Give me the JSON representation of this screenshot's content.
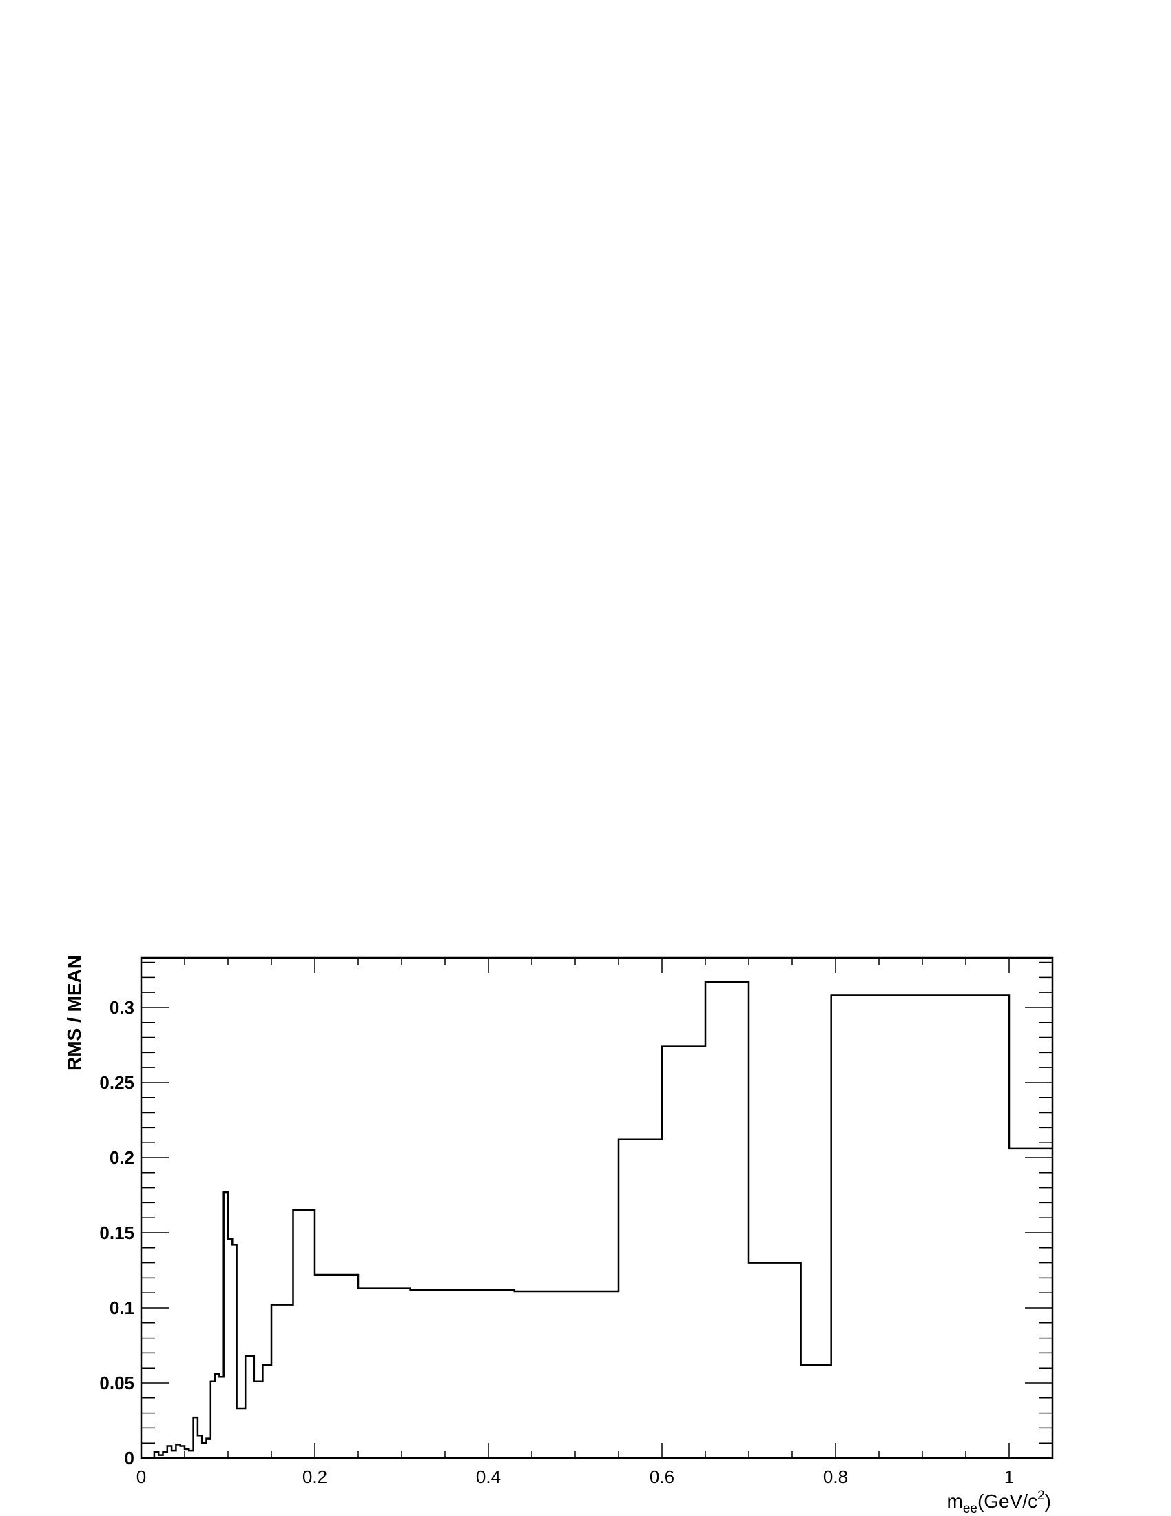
{
  "chart_data": {
    "type": "line",
    "step": true,
    "title": "",
    "xlabel": {
      "base": "m",
      "subscript": "ee",
      "rest": "(GeV/c",
      "superscript": "2",
      "close": ")"
    },
    "ylabel": "RMS / MEAN",
    "xlim": [
      0,
      1.05
    ],
    "ylim": [
      0,
      0.333
    ],
    "xticks": [
      0,
      0.2,
      0.4,
      0.6,
      0.8,
      1
    ],
    "xtick_labels": [
      "0",
      "0.2",
      "0.4",
      "0.6",
      "0.8",
      "1"
    ],
    "yticks": [
      0,
      0.05,
      0.1,
      0.15,
      0.2,
      0.25,
      0.3
    ],
    "ytick_labels": [
      "0",
      "0.05",
      "0.1",
      "0.15",
      "0.2",
      "0.25",
      "0.3"
    ],
    "grid": false,
    "line_color": "#000000",
    "baseline_color": "#cc0000",
    "series": [
      {
        "edges": [
          0,
          0.015,
          0.02,
          0.025,
          0.03,
          0.035,
          0.04,
          0.045,
          0.05,
          0.055,
          0.06,
          0.065,
          0.07,
          0.075,
          0.08,
          0.085,
          0.09,
          0.095,
          0.1,
          0.105,
          0.11,
          0.12,
          0.13,
          0.14,
          0.15,
          0.175,
          0.2,
          0.25,
          0.31,
          0.43,
          0.55,
          0.6,
          0.65,
          0.7,
          0.76,
          0.795,
          1.0,
          1.05
        ],
        "values": [
          0,
          0.004,
          0.002,
          0.004,
          0.008,
          0.005,
          0.009,
          0.008,
          0.006,
          0.005,
          0.027,
          0.015,
          0.01,
          0.013,
          0.051,
          0.056,
          0.054,
          0.177,
          0.146,
          0.142,
          0.033,
          0.068,
          0.051,
          0.062,
          0.102,
          0.165,
          0.122,
          0.113,
          0.112,
          0.111,
          0.212,
          0.274,
          0.317,
          0.13,
          0.062,
          0.308,
          0.206
        ]
      }
    ]
  }
}
